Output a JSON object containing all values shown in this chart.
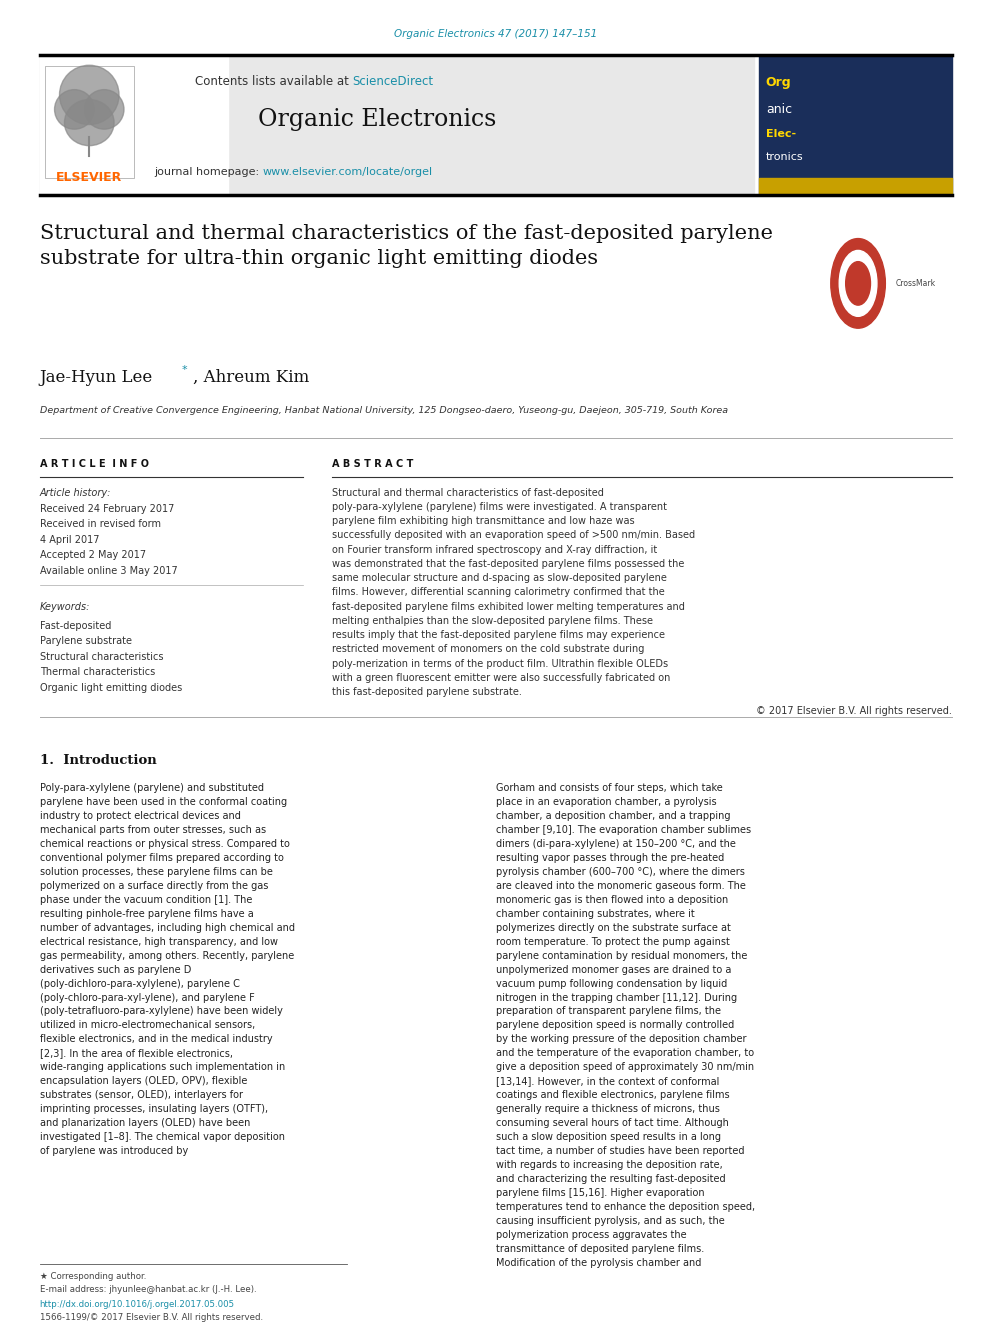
{
  "page_width": 9.92,
  "page_height": 13.23,
  "bg_color": "#ffffff",
  "top_journal_ref": "Organic Electronics 47 (2017) 147–151",
  "top_journal_ref_color": "#1a8fa8",
  "journal_name": "Organic Electronics",
  "contents_text": "Contents lists available at ",
  "sciencedirect_text": "ScienceDirect",
  "sciencedirect_color": "#1a8fa8",
  "homepage_text": "journal homepage: ",
  "homepage_url": "www.elsevier.com/locate/orgel",
  "homepage_url_color": "#1a8fa8",
  "header_bg": "#e8e8e8",
  "paper_title": "Structural and thermal characteristics of the fast-deposited parylene\nsubstrate for ultra-thin organic light emitting diodes",
  "authors": "Jae-Hyun Lee*, Ahreum Kim",
  "affiliation": "Department of Creative Convergence Engineering, Hanbat National University, 125 Dongseo-daero, Yuseong-gu, Daejeon, 305-719, South Korea",
  "section_article_info": "A R T I C L E  I N F O",
  "section_abstract": "A B S T R A C T",
  "article_history_label": "Article history:",
  "article_history": "Received 24 February 2017\nReceived in revised form\n4 April 2017\nAccepted 2 May 2017\nAvailable online 3 May 2017",
  "keywords_label": "Keywords:",
  "keywords": "Fast-deposited\nParylene substrate\nStructural characteristics\nThermal characteristics\nOrganic light emitting diodes",
  "abstract_text": "Structural and thermal characteristics of fast-deposited poly-para-xylylene (parylene) films were investigated. A transparent parylene film exhibiting high transmittance and low haze was successfully deposited with an evaporation speed of >500 nm/min. Based on Fourier transform infrared spectroscopy and X-ray diffraction, it was demonstrated that the fast-deposited parylene films possessed the same molecular structure and d-spacing as slow-deposited parylene films. However, differential scanning calorimetry confirmed that the fast-deposited parylene films exhibited lower melting temperatures and melting enthalpies than the slow-deposited parylene films. These results imply that the fast-deposited parylene films may experience restricted movement of monomers on the cold substrate during poly-merization in terms of the product film. Ultrathin flexible OLEDs with a green fluorescent emitter were also successfully fabricated on this fast-deposited parylene substrate.",
  "copyright_text": "© 2017 Elsevier B.V. All rights reserved.",
  "section1_title": "1.  Introduction",
  "intro_col1": "    Poly-para-xylylene (parylene) and substituted parylene have been used in the conformal coating industry to protect electrical devices and mechanical parts from outer stresses, such as chemical reactions or physical stress. Compared to conventional polymer films prepared according to solution processes, these parylene films can be polymerized on a surface directly from the gas phase under the vacuum condition [1]. The resulting pinhole-free parylene films have a number of advantages, including high chemical and electrical resistance, high transparency, and low gas permeability, among others. Recently, parylene derivatives such as parylene D (poly-dichloro-para-xylylene), parylene C (poly-chloro-para-xyl-ylene), and parylene F (poly-tetrafluoro-para-xylylene) have been widely utilized in micro-electromechanical sensors, flexible electronics, and in the medical industry [2,3]. In the area of flexible electronics, wide-ranging applications such implementation in encapsulation layers (OLED, OPV), flexible substrates (sensor, OLED), interlayers for imprinting processes, insulating layers (OTFT), and planarization layers (OLED) have been investigated [1–8].\n    The chemical vapor deposition of parylene was introduced by",
  "intro_col2": "Gorham and consists of four steps, which take place in an evaporation chamber, a pyrolysis chamber, a deposition chamber, and a trapping chamber [9,10]. The evaporation chamber sublimes dimers (di-para-xylylene) at 150–200 °C, and the resulting vapor passes through the pre-heated pyrolysis chamber (600–700 °C), where the dimers are cleaved into the monomeric gaseous form. The monomeric gas is then flowed into a deposition chamber containing substrates, where it polymerizes directly on the substrate surface at room temperature. To protect the pump against parylene contamination by residual monomers, the unpolymerized monomer gases are drained to a vacuum pump following condensation by liquid nitrogen in the trapping chamber [11,12].\n    During preparation of transparent parylene films, the parylene deposition speed is normally controlled by the working pressure of the deposition chamber and the temperature of the evaporation chamber, to give a deposition speed of approximately 30 nm/min [13,14]. However, in the context of conformal coatings and flexible electronics, parylene films generally require a thickness of microns, thus consuming several hours of tact time. Although such a slow deposition speed results in a long tact time, a number of studies have been reported with regards to increasing the deposition rate, and characterizing the resulting fast-deposited parylene films [15,16]. Higher evaporation temperatures tend to enhance the deposition speed, causing insufficient pyrolysis, and as such, the polymerization process aggravates the transmittance of deposited parylene films. Modification of the pyrolysis chamber and",
  "footer_text1": "★ Corresponding author.",
  "footer_email": "E-mail address: jhyunlee@hanbat.ac.kr (J.-H. Lee).",
  "footer_doi": "http://dx.doi.org/10.1016/j.orgel.2017.05.005",
  "footer_doi_color": "#1a8fa8",
  "footer_issn": "1566-1199/© 2017 Elsevier B.V. All rights reserved.",
  "elsevier_orange": "#FF6600",
  "black": "#000000",
  "dark_gray": "#333333",
  "medium_gray": "#555555",
  "light_text": "#444444"
}
